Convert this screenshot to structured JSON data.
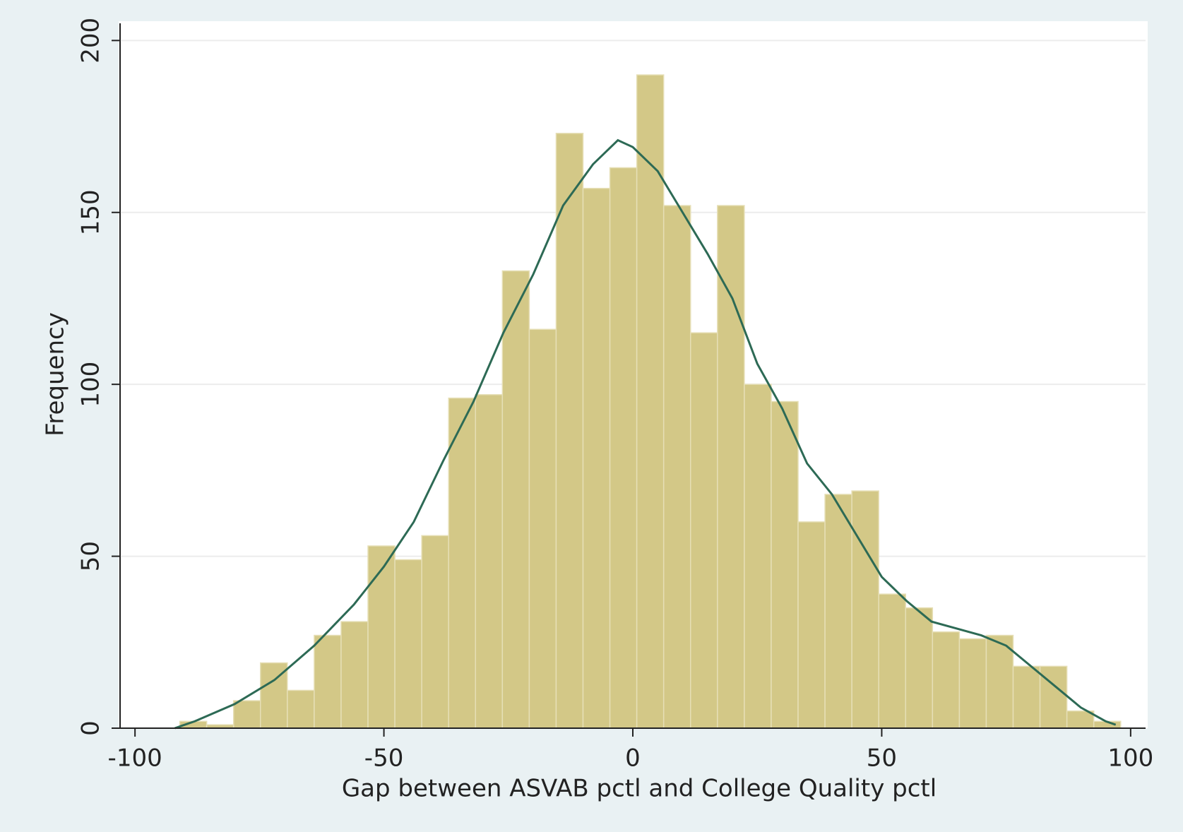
{
  "chart_data": {
    "type": "histogram",
    "xlabel": "Gap between ASVAB pctl and College Quality pctl",
    "ylabel": "Frequency",
    "bins": [
      -91,
      -85.6,
      -80.2,
      -74.8,
      -69.4,
      -64,
      -58.6,
      -53.2,
      -47.8,
      -42.4,
      -37,
      -31.6,
      -26.2,
      -20.8,
      -15.4,
      -10,
      -4.6,
      0.8,
      6.2,
      11.6,
      17,
      22.4,
      27.8,
      33.2,
      38.6,
      44,
      49.4,
      54.8,
      60.2,
      65.6,
      71,
      76.4,
      81.8,
      87.2,
      92.6,
      98
    ],
    "counts": [
      2,
      1,
      8,
      19,
      11,
      27,
      31,
      53,
      49,
      56,
      96,
      97,
      133,
      116,
      173,
      157,
      163,
      190,
      152,
      115,
      152,
      100,
      95,
      60,
      68,
      69,
      39,
      35,
      28,
      26,
      27,
      18,
      18,
      5,
      2
    ],
    "color": "#d3c887",
    "curve": {
      "color": "#2d6a55",
      "x": [
        -92,
        -88,
        -80,
        -72,
        -64,
        -56,
        -50,
        -44,
        -38,
        -32,
        -26,
        -20,
        -14,
        -8,
        -3,
        0,
        5,
        10,
        15,
        20,
        25,
        30,
        35,
        40,
        45,
        50,
        55,
        60,
        65,
        70,
        75,
        80,
        85,
        90,
        95,
        97
      ],
      "y": [
        0,
        2,
        7,
        14,
        24,
        36,
        47,
        60,
        78,
        95,
        115,
        132,
        152,
        164,
        171,
        169,
        162,
        150,
        138,
        125,
        106,
        93,
        77,
        68,
        56,
        44,
        37,
        31,
        29,
        27,
        24,
        18,
        12,
        6,
        2,
        1
      ]
    },
    "xlim": [
      -103,
      103
    ],
    "ylim": [
      0,
      205
    ],
    "xticks": [
      -100,
      -50,
      0,
      50,
      100
    ],
    "yticks": [
      0,
      50,
      100,
      150,
      200
    ],
    "grid": true
  }
}
